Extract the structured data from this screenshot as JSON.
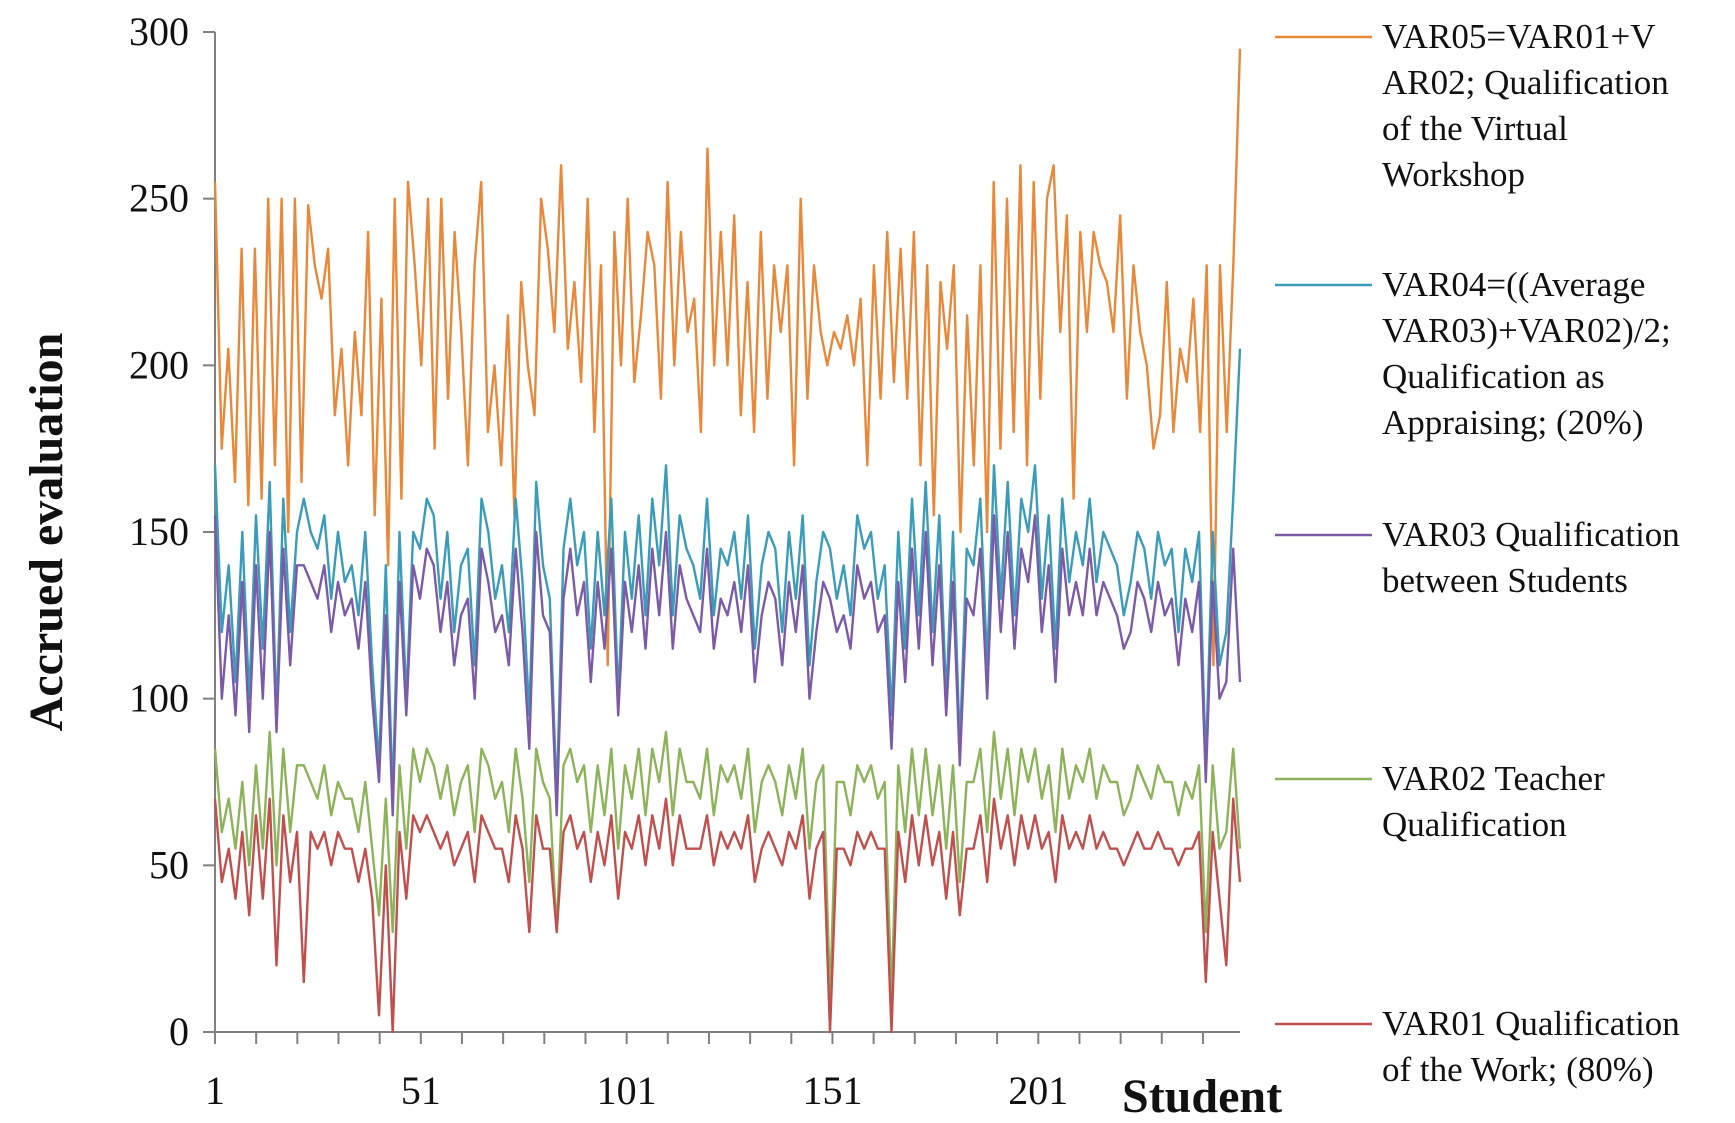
{
  "chart_data": {
    "type": "line",
    "title": "",
    "xlabel": "Student",
    "ylabel": "Accrued evaluation",
    "x_ticks": [
      1,
      51,
      101,
      151,
      201
    ],
    "x_range": [
      1,
      250
    ],
    "ylim": [
      0,
      300
    ],
    "y_ticks": [
      0,
      50,
      100,
      150,
      200,
      250,
      300
    ],
    "grid": false,
    "legend_position": "right",
    "series": [
      {
        "key": "var05",
        "name": "VAR05=VAR01+VAR02; Qualification of the Virtual Workshop",
        "legend_lines": [
          "VAR05=VAR01+V",
          "AR02; Qualification",
          "of the Virtual",
          "Workshop"
        ],
        "color": "#E8883A",
        "values": [
          255,
          175,
          205,
          165,
          235,
          158,
          235,
          160,
          250,
          170,
          250,
          150,
          250,
          165,
          248,
          230,
          220,
          235,
          185,
          205,
          170,
          210,
          185,
          240,
          155,
          220,
          140,
          250,
          160,
          255,
          230,
          200,
          250,
          175,
          250,
          190,
          240,
          210,
          170,
          230,
          255,
          180,
          200,
          170,
          215,
          155,
          225,
          200,
          185,
          250,
          235,
          210,
          260,
          205,
          225,
          195,
          250,
          180,
          230,
          110,
          240,
          200,
          250,
          195,
          215,
          240,
          230,
          190,
          255,
          200,
          240,
          210,
          220,
          180,
          265,
          200,
          240,
          200,
          245,
          185,
          225,
          180,
          240,
          190,
          230,
          210,
          230,
          170,
          250,
          190,
          230,
          210,
          200,
          210,
          205,
          215,
          200,
          220,
          170,
          230,
          190,
          240,
          195,
          235,
          190,
          240,
          170,
          230,
          155,
          225,
          205,
          230,
          150,
          215,
          170,
          230,
          150,
          255,
          175,
          250,
          180,
          260,
          170,
          255,
          190,
          250,
          260,
          210,
          245,
          160,
          240,
          210,
          240,
          230,
          225,
          210,
          245,
          190,
          230,
          210,
          200,
          175,
          185,
          225,
          180,
          205,
          195,
          220,
          180,
          230,
          110,
          230,
          180,
          230,
          295
        ]
      },
      {
        "key": "var04",
        "name": "VAR04=((Average VAR03)+VAR02)/2; Qualification as Appraising; (20%)",
        "legend_lines": [
          "VAR04=((Average",
          "VAR03)+VAR02)/2;",
          "Qualification as",
          "Appraising; (20%)"
        ],
        "color": "#3A9CB8",
        "values": [
          170,
          120,
          140,
          105,
          150,
          100,
          155,
          115,
          165,
          95,
          160,
          120,
          150,
          160,
          150,
          145,
          155,
          130,
          150,
          135,
          140,
          125,
          150,
          110,
          80,
          140,
          70,
          150,
          100,
          150,
          145,
          160,
          155,
          130,
          150,
          120,
          140,
          145,
          110,
          160,
          150,
          130,
          140,
          120,
          160,
          135,
          95,
          165,
          140,
          130,
          70,
          145,
          160,
          140,
          150,
          115,
          150,
          125,
          160,
          100,
          150,
          130,
          155,
          125,
          160,
          140,
          170,
          125,
          155,
          145,
          140,
          130,
          160,
          125,
          145,
          140,
          150,
          130,
          155,
          115,
          140,
          150,
          145,
          120,
          150,
          130,
          155,
          110,
          135,
          150,
          145,
          130,
          140,
          125,
          155,
          145,
          150,
          130,
          140,
          95,
          150,
          115,
          160,
          125,
          165,
          120,
          155,
          100,
          150,
          85,
          145,
          140,
          160,
          110,
          170,
          130,
          165,
          125,
          160,
          150,
          170,
          130,
          155,
          115,
          160,
          135,
          150,
          140,
          160,
          135,
          150,
          145,
          140,
          125,
          135,
          150,
          145,
          130,
          150,
          140,
          145,
          120,
          145,
          135,
          150,
          80,
          150,
          110,
          120,
          160,
          205
        ]
      },
      {
        "key": "var03",
        "name": "VAR03 Qualification between Students",
        "legend_lines": [
          "VAR03 Qualification",
          "between Students"
        ],
        "color": "#7B5BA8",
        "values": [
          155,
          100,
          125,
          95,
          135,
          90,
          140,
          100,
          150,
          90,
          145,
          110,
          140,
          140,
          135,
          130,
          140,
          120,
          135,
          125,
          130,
          115,
          135,
          100,
          75,
          125,
          65,
          135,
          95,
          140,
          130,
          145,
          140,
          120,
          135,
          110,
          125,
          130,
          100,
          145,
          135,
          120,
          125,
          110,
          145,
          120,
          85,
          150,
          125,
          120,
          65,
          130,
          145,
          125,
          135,
          105,
          135,
          115,
          145,
          95,
          135,
          120,
          140,
          115,
          145,
          125,
          150,
          115,
          140,
          130,
          125,
          120,
          145,
          115,
          130,
          125,
          135,
          120,
          140,
          105,
          125,
          135,
          130,
          110,
          135,
          120,
          140,
          100,
          120,
          135,
          130,
          120,
          125,
          115,
          140,
          130,
          135,
          120,
          125,
          85,
          135,
          105,
          145,
          115,
          150,
          110,
          140,
          95,
          135,
          80,
          130,
          125,
          145,
          100,
          155,
          120,
          150,
          115,
          145,
          135,
          155,
          120,
          140,
          105,
          145,
          125,
          135,
          125,
          145,
          125,
          135,
          130,
          125,
          115,
          120,
          135,
          130,
          120,
          135,
          125,
          130,
          110,
          130,
          120,
          135,
          75,
          135,
          100,
          105,
          145,
          105
        ]
      },
      {
        "key": "var02",
        "name": "VAR02 Teacher Qualification",
        "legend_lines": [
          "VAR02 Teacher",
          "Qualification"
        ],
        "color": "#8DB35A",
        "values": [
          85,
          60,
          70,
          55,
          75,
          50,
          80,
          55,
          90,
          50,
          85,
          60,
          80,
          80,
          75,
          70,
          80,
          65,
          75,
          70,
          70,
          60,
          75,
          55,
          35,
          70,
          30,
          80,
          55,
          85,
          75,
          85,
          80,
          70,
          80,
          65,
          75,
          80,
          60,
          85,
          80,
          70,
          75,
          60,
          85,
          70,
          45,
          85,
          75,
          70,
          30,
          80,
          85,
          75,
          80,
          60,
          80,
          65,
          85,
          55,
          80,
          70,
          85,
          65,
          85,
          75,
          90,
          65,
          85,
          75,
          75,
          70,
          85,
          65,
          80,
          75,
          80,
          70,
          85,
          60,
          75,
          80,
          75,
          65,
          80,
          70,
          85,
          55,
          75,
          80,
          10,
          75,
          75,
          65,
          80,
          75,
          80,
          70,
          75,
          10,
          80,
          60,
          85,
          65,
          85,
          65,
          80,
          55,
          80,
          45,
          75,
          75,
          85,
          60,
          90,
          70,
          85,
          65,
          85,
          75,
          85,
          70,
          80,
          60,
          85,
          70,
          80,
          75,
          85,
          70,
          80,
          75,
          75,
          65,
          70,
          80,
          75,
          70,
          80,
          75,
          75,
          65,
          75,
          70,
          80,
          30,
          80,
          55,
          60,
          85,
          55
        ]
      },
      {
        "key": "var01",
        "name": "VAR01 Qualification of the Work; (80%)",
        "legend_lines": [
          "VAR01 Qualification",
          "of the Work; (80%)"
        ],
        "color": "#C0504D",
        "values": [
          70,
          45,
          55,
          40,
          60,
          35,
          65,
          40,
          70,
          20,
          65,
          45,
          60,
          15,
          60,
          55,
          60,
          50,
          60,
          55,
          55,
          45,
          55,
          40,
          5,
          50,
          0,
          60,
          40,
          65,
          60,
          65,
          60,
          55,
          60,
          50,
          55,
          60,
          45,
          65,
          60,
          55,
          55,
          45,
          65,
          55,
          30,
          65,
          55,
          55,
          30,
          60,
          65,
          55,
          60,
          45,
          60,
          50,
          65,
          40,
          60,
          55,
          65,
          50,
          65,
          55,
          70,
          50,
          65,
          55,
          55,
          55,
          65,
          50,
          60,
          55,
          60,
          55,
          65,
          45,
          55,
          60,
          55,
          50,
          60,
          55,
          65,
          40,
          55,
          60,
          0,
          55,
          55,
          50,
          60,
          55,
          60,
          55,
          55,
          0,
          60,
          45,
          65,
          50,
          65,
          50,
          60,
          40,
          60,
          35,
          55,
          55,
          65,
          45,
          70,
          55,
          65,
          50,
          65,
          55,
          65,
          55,
          60,
          45,
          65,
          55,
          60,
          55,
          65,
          55,
          60,
          55,
          55,
          50,
          55,
          60,
          55,
          55,
          60,
          55,
          55,
          50,
          55,
          55,
          60,
          15,
          60,
          40,
          20,
          70,
          45
        ]
      }
    ]
  }
}
